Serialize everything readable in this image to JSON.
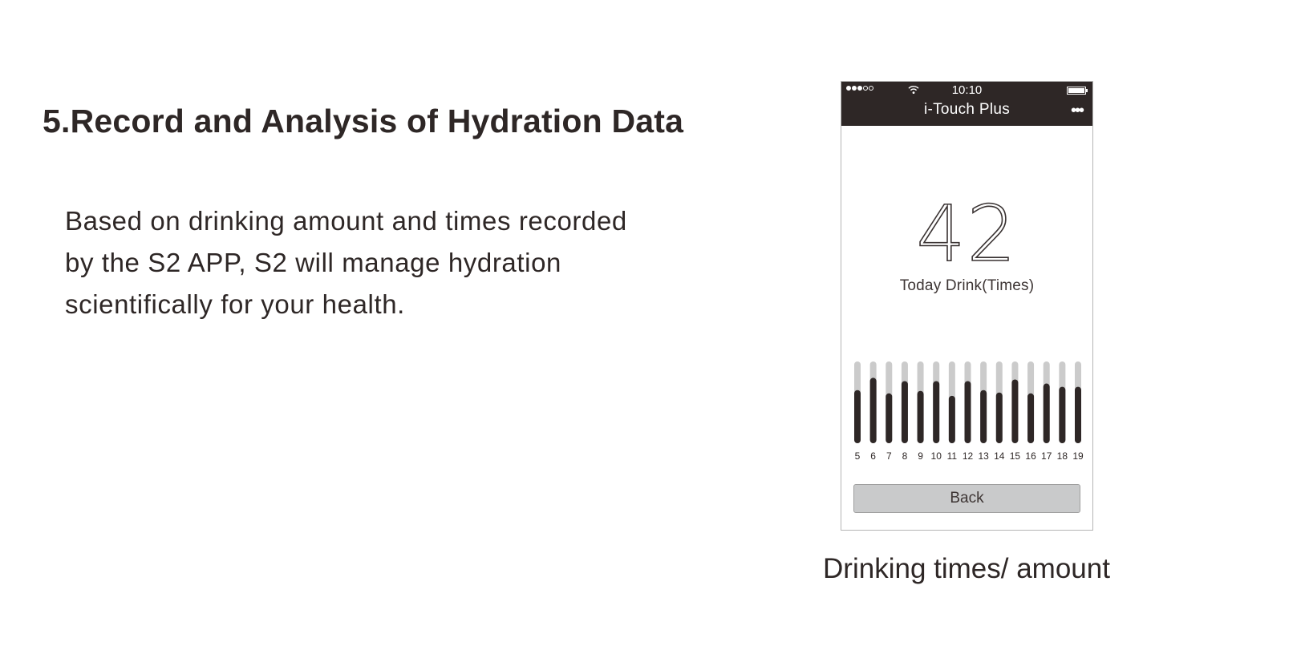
{
  "heading": "5.Record and Analysis of Hydration Data",
  "body_lines": [
    "Based on drinking amount and times recorded",
    "by the S2 APP, S2 will manage hydration",
    "scientifically for your health."
  ],
  "phone": {
    "status_time": "10:10",
    "app_title": "i-Touch Plus",
    "more_label": "•••",
    "count": "42",
    "count_label": "Today Drink(Times)",
    "back_label": "Back",
    "colors": {
      "topbar": "#2e2726",
      "bar_fill": "#2e2726",
      "bar_track": "#cbcbcb"
    }
  },
  "chart_data": {
    "type": "bar",
    "categories": [
      "5",
      "6",
      "7",
      "8",
      "9",
      "10",
      "11",
      "12",
      "13",
      "14",
      "15",
      "16",
      "17",
      "18",
      "19"
    ],
    "values": [
      0.65,
      0.8,
      0.61,
      0.76,
      0.64,
      0.76,
      0.58,
      0.76,
      0.65,
      0.62,
      0.78,
      0.61,
      0.73,
      0.69,
      0.69
    ],
    "ylim": [
      0,
      1
    ],
    "xlabel": "",
    "ylabel": ""
  },
  "figure_caption": "Drinking times/ amount"
}
